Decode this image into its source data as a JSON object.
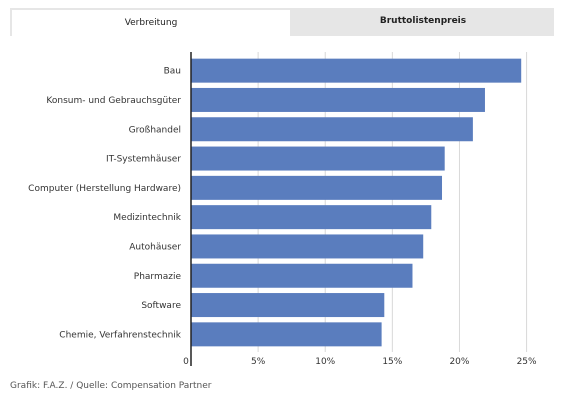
{
  "tabs": [
    {
      "label": "Verbreitung",
      "active": true
    },
    {
      "label": "Bruttolistenpreis",
      "active": false
    }
  ],
  "source": "Grafik: F.A.Z. / Quelle: Compensation Partner",
  "colors": {
    "bar": "#5a7dbe",
    "grid": "#d8d8d8",
    "axis": "#222222",
    "tab_bg": "#e6e6e6"
  },
  "chart_data": {
    "type": "bar",
    "orientation": "horizontal",
    "categories": [
      "Bau",
      "Konsum- und Gebrauchsgüter",
      "Großhandel",
      "IT-Systemhäuser",
      "Computer (Herstellung Hardware)",
      "Medizintechnik",
      "Autohäuser",
      "Pharmazie",
      "Software",
      "Chemie, Verfahrenstechnik"
    ],
    "values": [
      24.6,
      21.9,
      21.0,
      18.9,
      18.7,
      17.9,
      17.3,
      16.5,
      14.4,
      14.2
    ],
    "xlim": [
      0,
      26
    ],
    "ticks": [
      0,
      5,
      10,
      15,
      20,
      25
    ],
    "tick_labels": [
      "0",
      "5%",
      "10%",
      "15%",
      "20%",
      "25%"
    ],
    "grid": true
  }
}
